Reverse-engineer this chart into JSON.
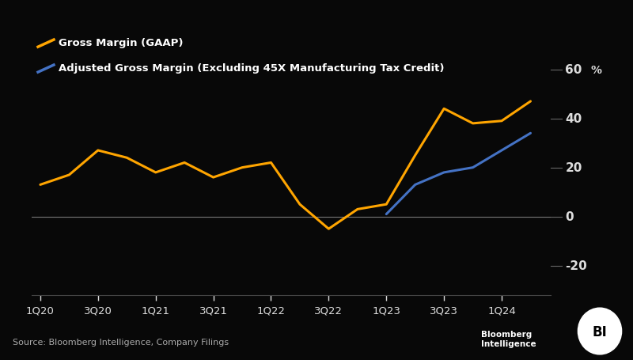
{
  "gross_margin_x": [
    0,
    1,
    2,
    3,
    4,
    5,
    6,
    7,
    8,
    9,
    10,
    11,
    12,
    13,
    14,
    15,
    16,
    17
  ],
  "gross_margin_values": [
    13,
    17,
    27,
    24,
    18,
    22,
    16,
    20,
    22,
    5,
    -5,
    3,
    5,
    25,
    44,
    38,
    39,
    47
  ],
  "adj_margin_x": [
    12,
    13,
    14,
    15,
    16,
    17
  ],
  "adj_margin_values": [
    1,
    13,
    18,
    20,
    27,
    34
  ],
  "xtick_labels": [
    "1Q20",
    "3Q20",
    "1Q21",
    "3Q21",
    "1Q22",
    "3Q22",
    "1Q23",
    "3Q23",
    "1Q24"
  ],
  "xtick_positions": [
    0,
    2,
    4,
    6,
    8,
    10,
    12,
    14,
    16
  ],
  "yticks": [
    -20,
    0,
    20,
    40,
    60
  ],
  "ylim": [
    -32,
    68
  ],
  "xlim": [
    -0.3,
    17.7
  ],
  "gross_margin_color": "#FFA500",
  "adj_margin_color": "#4472C4",
  "background_color": "#080808",
  "legend_gross": "Gross Margin (GAAP)",
  "legend_adj": "Adjusted Gross Margin (Excluding 45X Manufacturing Tax Credit)",
  "source_text": "Source: Bloomberg Intelligence, Company Filings",
  "percent_label": "%",
  "line_width": 2.2,
  "zero_line_color": "#777777",
  "tick_mark_color": "#666666",
  "tick_label_color": "#dddddd",
  "legend_color": "#ffffff",
  "source_color": "#aaaaaa",
  "bi_text_color": "#ffffff"
}
